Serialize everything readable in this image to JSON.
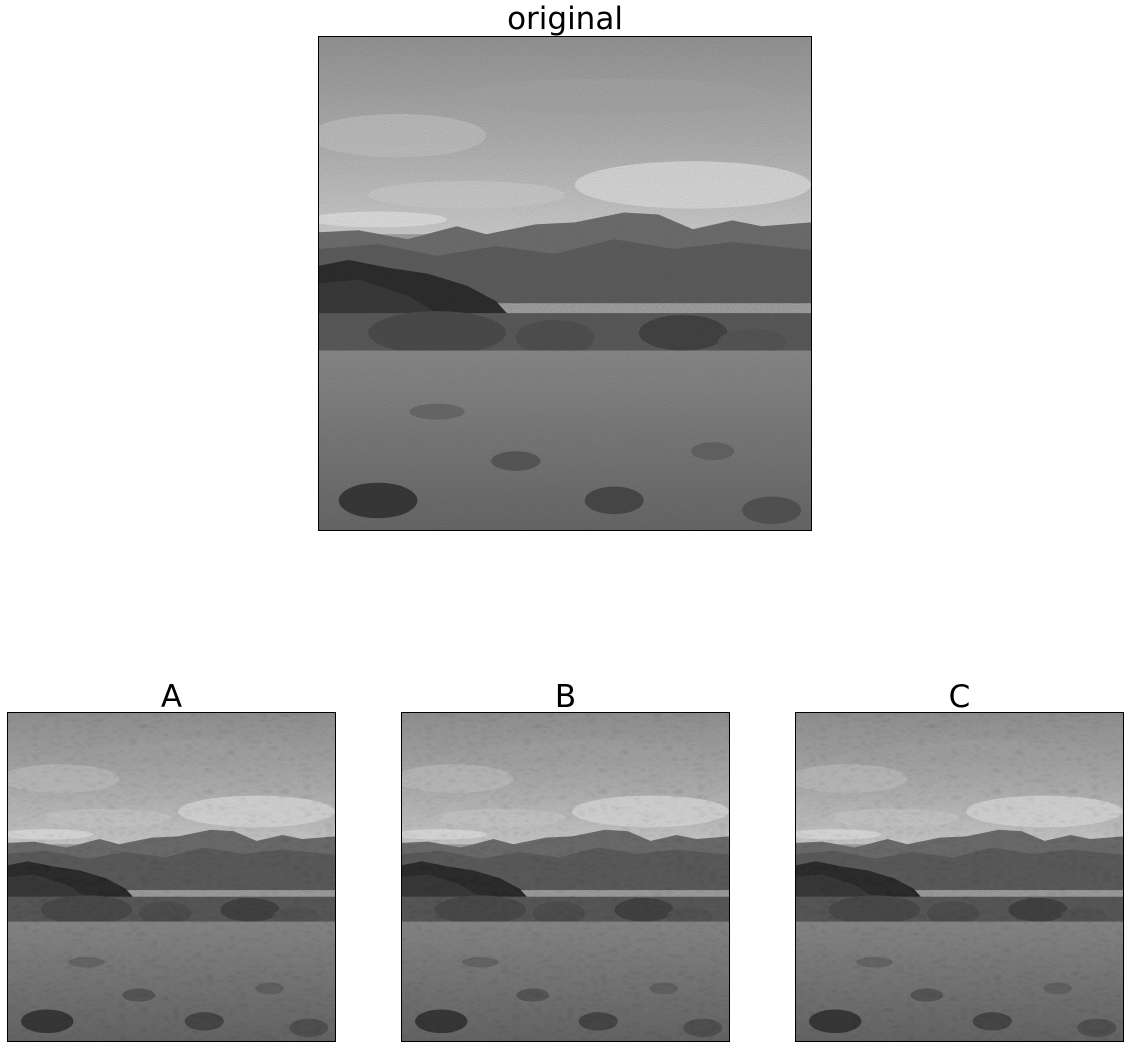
{
  "panels": {
    "original": {
      "title": "original"
    },
    "a": {
      "title": "A"
    },
    "b": {
      "title": "B"
    },
    "c": {
      "title": "C"
    }
  },
  "scene_palette": {
    "sky_top": "#9a9a9a",
    "sky_bottom": "#c9c9c9",
    "cloud": "#dcdcdc",
    "mountains_far": "#6e6e6e",
    "mountains_near": "#4a4a4a",
    "dark_rocks": "#2e2e2e",
    "shrubs": "#5a5a5a",
    "ground": "#7d7d7d"
  }
}
